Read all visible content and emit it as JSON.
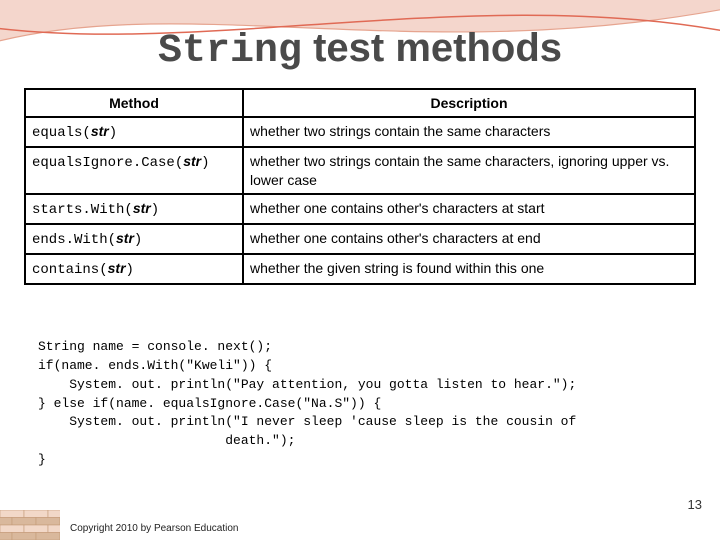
{
  "title_mono": "String",
  "title_rest": " test methods",
  "table": {
    "headers": [
      "Method",
      "Description"
    ],
    "rows": [
      {
        "method_name": "equals(",
        "param": "str",
        "close": ")",
        "desc": "whether two strings contain the same characters"
      },
      {
        "method_name": "equalsIgnore.Case(",
        "param": "str",
        "close": ")",
        "desc": "whether two strings contain the same characters, ignoring upper vs. lower case"
      },
      {
        "method_name": "starts.With(",
        "param": "str",
        "close": ")",
        "desc": "whether one contains other's characters at start"
      },
      {
        "method_name": "ends.With(",
        "param": "str",
        "close": ")",
        "desc": "whether one contains other's characters at end"
      },
      {
        "method_name": "contains(",
        "param": "str",
        "close": ")",
        "desc": "whether the given string is found within this one"
      }
    ]
  },
  "code": "String name = console. next();\nif(name. ends.With(\"Kweli\")) {\n    System. out. println(\"Pay attention, you gotta listen to hear.\");\n} else if(name. equalsIgnore.Case(\"Na.S\")) {\n    System. out. println(\"I never sleep 'cause sleep is the cousin of\n                        death.\");\n}",
  "page_number": "13",
  "copyright": "Copyright 2010 by Pearson Education",
  "colors": {
    "curve1_fill": "#ffffff",
    "curve1_stroke": "#e06a55",
    "curve2_fill": "#f4d6cc",
    "curve2_stroke": "#e6a48f",
    "brick_light": "#f2d8c8",
    "brick_dark": "#d9b89c",
    "brick_line": "#c49a78"
  }
}
